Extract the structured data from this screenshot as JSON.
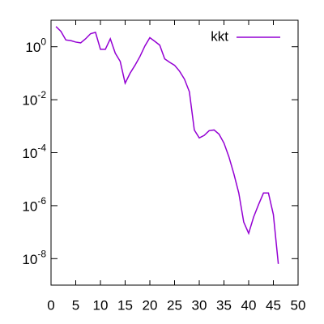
{
  "chart_data": {
    "type": "line",
    "x": [
      1,
      2,
      3,
      4,
      5,
      6,
      7,
      8,
      9,
      10,
      11,
      12,
      13,
      14,
      15,
      16,
      17,
      18,
      19,
      20,
      21,
      22,
      23,
      24,
      25,
      26,
      27,
      28,
      29,
      30,
      31,
      32,
      33,
      34,
      35,
      36,
      37,
      38,
      39,
      40,
      41,
      42,
      43,
      44,
      45,
      46
    ],
    "series": [
      {
        "name": "kkt",
        "color": "#9400d3",
        "values": [
          5.8,
          3.8,
          1.8,
          1.7,
          1.5,
          1.4,
          2.0,
          3.1,
          3.5,
          0.8,
          0.8,
          2.0,
          0.57,
          0.28,
          0.042,
          0.1,
          0.2,
          0.43,
          1.07,
          2.2,
          1.6,
          1.15,
          0.35,
          0.26,
          0.2,
          0.12,
          0.06,
          0.02,
          0.00072,
          0.00036,
          0.00045,
          0.00068,
          0.00072,
          0.0005,
          0.00023,
          7e-05,
          1.6e-05,
          3e-06,
          2.4e-07,
          9e-08,
          3.7e-07,
          1.1e-06,
          3e-06,
          3e-06,
          4.6e-07,
          6.3e-09
        ]
      }
    ],
    "xlim": [
      0,
      50
    ],
    "xticks": [
      0,
      5,
      10,
      15,
      20,
      25,
      30,
      35,
      40,
      45,
      50
    ],
    "ylim": [
      1e-09,
      10
    ],
    "log_y": true,
    "yticks": [
      {
        "value": 1,
        "label": "10^0"
      },
      {
        "value": 0.01,
        "label": "10^-2"
      },
      {
        "value": 0.0001,
        "label": "10^-4"
      },
      {
        "value": 1e-06,
        "label": "10^-6"
      },
      {
        "value": 1e-08,
        "label": "10^-8"
      }
    ],
    "legend": "top-right",
    "grid": false
  }
}
